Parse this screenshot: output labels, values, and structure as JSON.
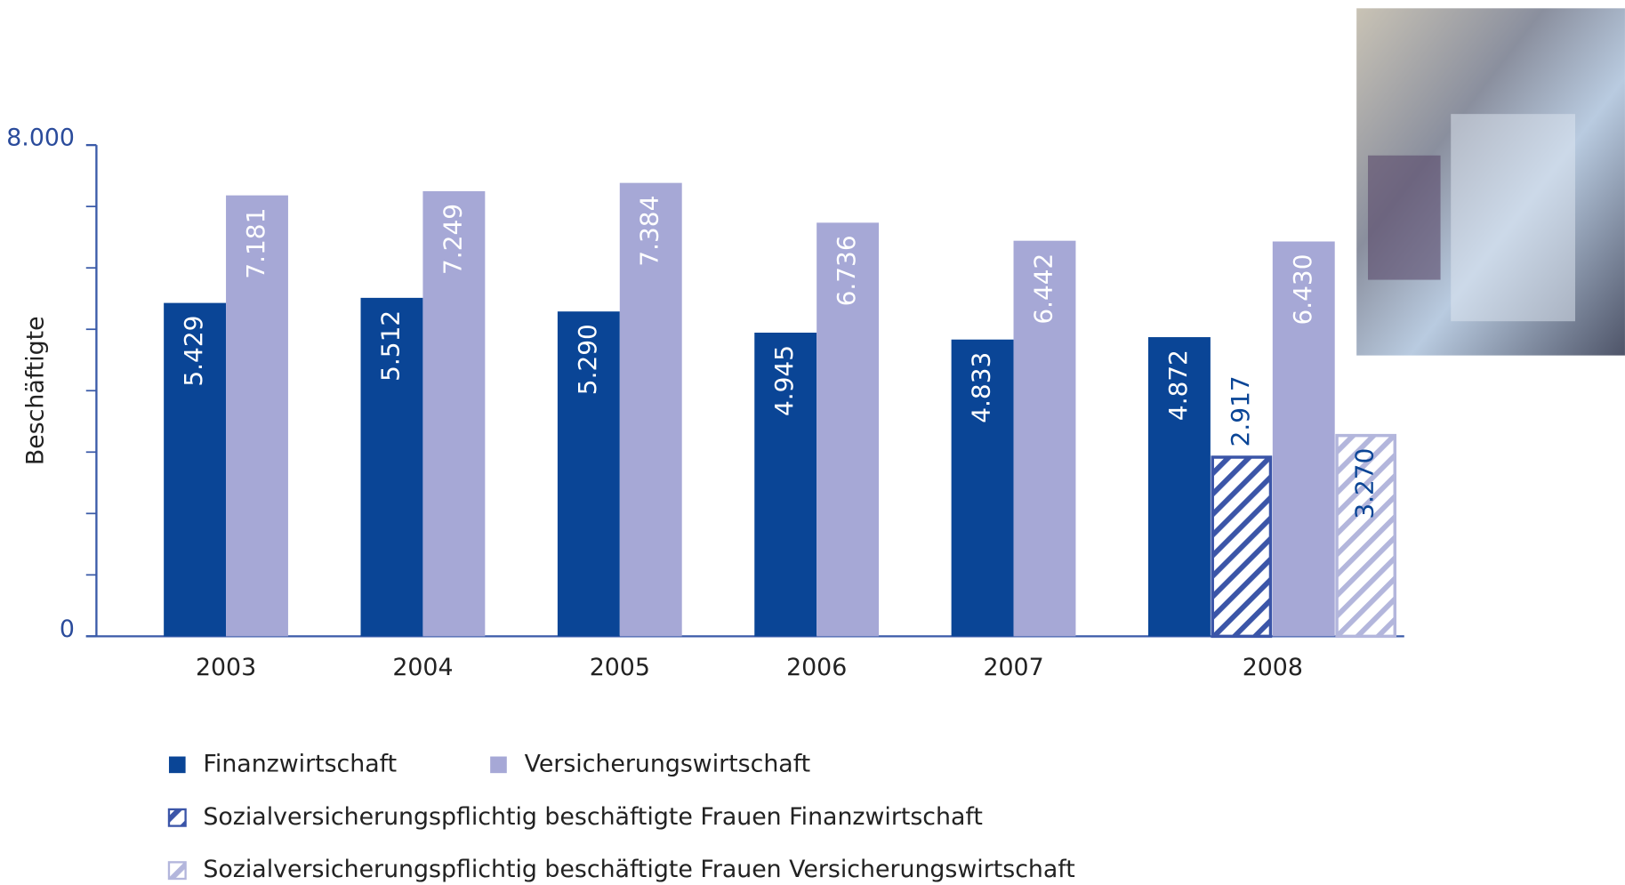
{
  "chart_data": {
    "type": "bar",
    "y_label": "Beschäftigte",
    "categories": [
      "2003",
      "2004",
      "2005",
      "2006",
      "2007",
      "2008"
    ],
    "series": [
      {
        "name": "Finanzwirtschaft",
        "color": "#0a4596",
        "values": [
          5429,
          5512,
          5290,
          4945,
          4833,
          4872
        ],
        "value_labels": [
          "5.429",
          "5.512",
          "5.290",
          "4.945",
          "4.833",
          "4.872"
        ]
      },
      {
        "name": "Sozialversicherungspflichtig beschäftigte Frauen Finanzwirtschaft",
        "color": "#3b55a8",
        "hatched": true,
        "values": [
          null,
          null,
          null,
          null,
          null,
          2917
        ],
        "value_labels": [
          null,
          null,
          null,
          null,
          null,
          "2.917"
        ]
      },
      {
        "name": "Versicherungswirtschaft",
        "color": "#a6a8d6",
        "values": [
          7181,
          7249,
          7384,
          6736,
          6442,
          6430
        ],
        "value_labels": [
          "7.181",
          "7.249",
          "7.384",
          "6.736",
          "6.442",
          "6.430"
        ]
      },
      {
        "name": "Sozialversicherungspflichtig beschäftigte Frauen Versicherungswirtschaft",
        "color": "#b3b6dc",
        "hatched": true,
        "values": [
          null,
          null,
          null,
          null,
          null,
          3270
        ],
        "value_labels": [
          null,
          null,
          null,
          null,
          null,
          "3.270"
        ]
      }
    ],
    "ylim": [
      0,
      8000
    ],
    "yticks": [
      0,
      {
        "value": 8000,
        "label": "8.000"
      }
    ],
    "minor_yticks": [
      1000,
      2000,
      3000,
      4000,
      5000,
      6000,
      7000
    ]
  }
}
